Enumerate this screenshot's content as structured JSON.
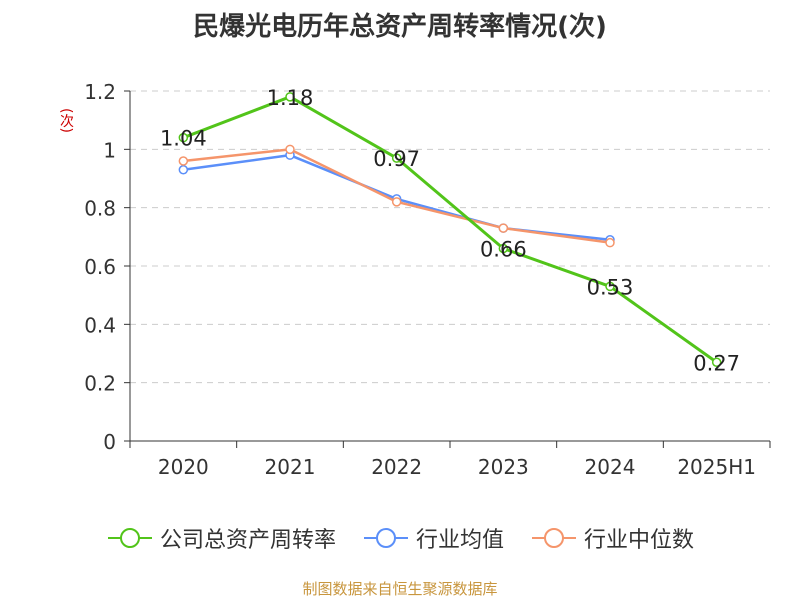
{
  "title": "民爆光电历年总资产周转率情况(次)",
  "y_unit": "(次)",
  "source": "制图数据来自恒生聚源数据库",
  "chart_data": {
    "type": "line",
    "categories": [
      "2020",
      "2021",
      "2022",
      "2023",
      "2024",
      "2025H1"
    ],
    "ylim": [
      0,
      1.2
    ],
    "yticks": [
      "0",
      "0.2",
      "0.4",
      "0.6",
      "0.8",
      "1",
      "1.2"
    ],
    "ytick_values": [
      0,
      0.2,
      0.4,
      0.6,
      0.8,
      1.0,
      1.2
    ],
    "grid": true,
    "legend_position": "bottom",
    "series": [
      {
        "name": "公司总资产周转率",
        "color": "#52c41a",
        "values": [
          1.04,
          1.18,
          0.97,
          0.66,
          0.53,
          0.27
        ],
        "labels": [
          "1.04",
          "1.18",
          "0.97",
          "0.66",
          "0.53",
          "0.27"
        ]
      },
      {
        "name": "行业均值",
        "color": "#5b8ff9",
        "values": [
          0.93,
          0.98,
          0.83,
          0.73,
          0.69,
          null
        ]
      },
      {
        "name": "行业中位数",
        "color": "#f5956b",
        "values": [
          0.96,
          1.0,
          0.82,
          0.73,
          0.68,
          null
        ]
      }
    ]
  }
}
